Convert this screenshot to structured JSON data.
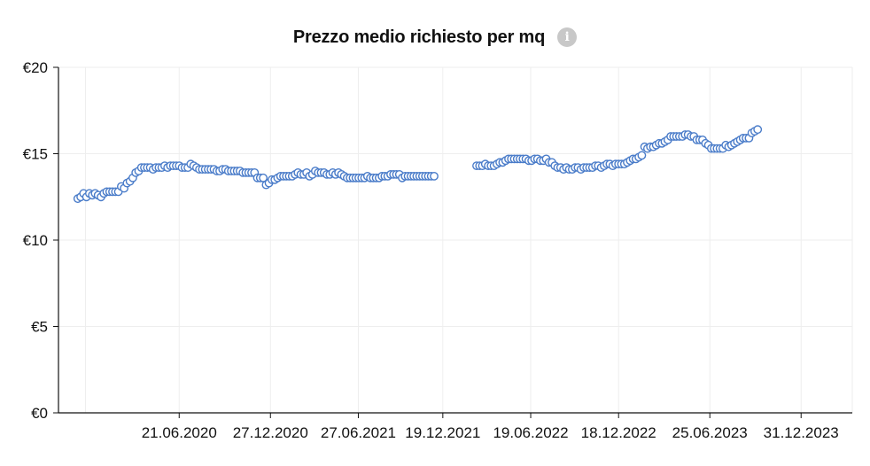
{
  "header": {
    "title": "Prezzo medio richiesto per mq",
    "info_icon": "info-icon"
  },
  "colors": {
    "marker_stroke": "#4a7cc9",
    "marker_fill": "#ffffff",
    "grid": "#eeeeee",
    "axis": "#111111"
  },
  "chart_data": {
    "type": "scatter",
    "title": "Prezzo medio richiesto per mq",
    "xlabel": "",
    "ylabel": "",
    "ylim": [
      0,
      20
    ],
    "y_ticks": [
      {
        "value": 0,
        "label": "€0"
      },
      {
        "value": 5,
        "label": "€5"
      },
      {
        "value": 10,
        "label": "€10"
      },
      {
        "value": 15,
        "label": "€15"
      },
      {
        "value": 20,
        "label": "€20"
      }
    ],
    "xlim": [
      "2019-10-15",
      "2024-04-15"
    ],
    "x_ticks": [
      {
        "date": "2020-06-21",
        "label": "21.06.2020"
      },
      {
        "date": "2020-12-27",
        "label": "27.12.2020"
      },
      {
        "date": "2021-06-27",
        "label": "27.06.2021"
      },
      {
        "date": "2021-12-19",
        "label": "19.12.2021"
      },
      {
        "date": "2022-06-19",
        "label": "19.06.2022"
      },
      {
        "date": "2022-12-18",
        "label": "18.12.2022"
      },
      {
        "date": "2023-06-25",
        "label": "25.06.2023"
      },
      {
        "date": "2023-12-31",
        "label": "31.12.2023"
      }
    ],
    "x_gridlines": [
      "2019-12-10",
      "2020-06-21",
      "2020-12-27",
      "2021-06-27",
      "2021-12-19",
      "2022-06-19",
      "2022-12-18",
      "2023-06-25",
      "2023-12-31",
      "2024-04-15"
    ],
    "grid": true,
    "legend": "none",
    "series": [
      {
        "points": [
          [
            "2019-11-24",
            12.4
          ],
          [
            "2019-11-30",
            12.5
          ],
          [
            "2019-12-06",
            12.7
          ],
          [
            "2019-12-12",
            12.5
          ],
          [
            "2019-12-18",
            12.7
          ],
          [
            "2019-12-24",
            12.6
          ],
          [
            "2019-12-30",
            12.7
          ],
          [
            "2020-01-05",
            12.6
          ],
          [
            "2020-01-11",
            12.5
          ],
          [
            "2020-01-17",
            12.7
          ],
          [
            "2020-01-23",
            12.8
          ],
          [
            "2020-01-29",
            12.8
          ],
          [
            "2020-02-04",
            12.8
          ],
          [
            "2020-02-10",
            12.8
          ],
          [
            "2020-02-16",
            12.8
          ],
          [
            "2020-02-22",
            13.1
          ],
          [
            "2020-02-28",
            13.0
          ],
          [
            "2020-03-05",
            13.3
          ],
          [
            "2020-03-11",
            13.4
          ],
          [
            "2020-03-17",
            13.6
          ],
          [
            "2020-03-23",
            13.9
          ],
          [
            "2020-03-29",
            14.0
          ],
          [
            "2020-04-04",
            14.2
          ],
          [
            "2020-04-10",
            14.2
          ],
          [
            "2020-04-16",
            14.2
          ],
          [
            "2020-04-22",
            14.2
          ],
          [
            "2020-04-28",
            14.1
          ],
          [
            "2020-05-04",
            14.2
          ],
          [
            "2020-05-10",
            14.2
          ],
          [
            "2020-05-16",
            14.2
          ],
          [
            "2020-05-22",
            14.3
          ],
          [
            "2020-05-28",
            14.2
          ],
          [
            "2020-06-03",
            14.3
          ],
          [
            "2020-06-09",
            14.3
          ],
          [
            "2020-06-15",
            14.3
          ],
          [
            "2020-06-21",
            14.3
          ],
          [
            "2020-06-27",
            14.2
          ],
          [
            "2020-07-03",
            14.2
          ],
          [
            "2020-07-09",
            14.2
          ],
          [
            "2020-07-15",
            14.4
          ],
          [
            "2020-07-21",
            14.3
          ],
          [
            "2020-07-27",
            14.2
          ],
          [
            "2020-08-02",
            14.1
          ],
          [
            "2020-08-08",
            14.1
          ],
          [
            "2020-08-14",
            14.1
          ],
          [
            "2020-08-20",
            14.1
          ],
          [
            "2020-08-26",
            14.1
          ],
          [
            "2020-09-01",
            14.1
          ],
          [
            "2020-09-07",
            14.0
          ],
          [
            "2020-09-13",
            14.0
          ],
          [
            "2020-09-19",
            14.1
          ],
          [
            "2020-09-25",
            14.1
          ],
          [
            "2020-10-01",
            14.0
          ],
          [
            "2020-10-07",
            14.0
          ],
          [
            "2020-10-13",
            14.0
          ],
          [
            "2020-10-19",
            14.0
          ],
          [
            "2020-10-25",
            14.0
          ],
          [
            "2020-10-31",
            13.9
          ],
          [
            "2020-11-06",
            13.9
          ],
          [
            "2020-11-12",
            13.9
          ],
          [
            "2020-11-18",
            13.9
          ],
          [
            "2020-11-24",
            13.9
          ],
          [
            "2020-11-30",
            13.6
          ],
          [
            "2020-12-06",
            13.6
          ],
          [
            "2020-12-12",
            13.6
          ],
          [
            "2020-12-18",
            13.2
          ],
          [
            "2020-12-24",
            13.3
          ],
          [
            "2020-12-30",
            13.5
          ],
          [
            "2021-01-05",
            13.5
          ],
          [
            "2021-01-11",
            13.6
          ],
          [
            "2021-01-17",
            13.7
          ],
          [
            "2021-01-23",
            13.7
          ],
          [
            "2021-01-29",
            13.7
          ],
          [
            "2021-02-04",
            13.7
          ],
          [
            "2021-02-10",
            13.7
          ],
          [
            "2021-02-16",
            13.8
          ],
          [
            "2021-02-22",
            13.9
          ],
          [
            "2021-02-28",
            13.8
          ],
          [
            "2021-03-06",
            13.8
          ],
          [
            "2021-03-12",
            13.9
          ],
          [
            "2021-03-18",
            13.7
          ],
          [
            "2021-03-24",
            13.8
          ],
          [
            "2021-03-30",
            14.0
          ],
          [
            "2021-04-05",
            13.9
          ],
          [
            "2021-04-11",
            13.9
          ],
          [
            "2021-04-17",
            13.9
          ],
          [
            "2021-04-23",
            13.8
          ],
          [
            "2021-04-29",
            13.8
          ],
          [
            "2021-05-05",
            13.9
          ],
          [
            "2021-05-11",
            13.8
          ],
          [
            "2021-05-17",
            13.9
          ],
          [
            "2021-05-23",
            13.8
          ],
          [
            "2021-05-29",
            13.7
          ],
          [
            "2021-06-04",
            13.6
          ],
          [
            "2021-06-10",
            13.6
          ],
          [
            "2021-06-16",
            13.6
          ],
          [
            "2021-06-22",
            13.6
          ],
          [
            "2021-06-28",
            13.6
          ],
          [
            "2021-07-04",
            13.6
          ],
          [
            "2021-07-10",
            13.6
          ],
          [
            "2021-07-16",
            13.7
          ],
          [
            "2021-07-22",
            13.6
          ],
          [
            "2021-07-28",
            13.6
          ],
          [
            "2021-08-03",
            13.6
          ],
          [
            "2021-08-09",
            13.6
          ],
          [
            "2021-08-15",
            13.7
          ],
          [
            "2021-08-21",
            13.7
          ],
          [
            "2021-08-27",
            13.7
          ],
          [
            "2021-09-02",
            13.8
          ],
          [
            "2021-09-08",
            13.8
          ],
          [
            "2021-09-14",
            13.8
          ],
          [
            "2021-09-20",
            13.8
          ],
          [
            "2021-09-26",
            13.6
          ],
          [
            "2021-10-02",
            13.7
          ],
          [
            "2021-10-08",
            13.7
          ],
          [
            "2021-10-14",
            13.7
          ],
          [
            "2021-10-20",
            13.7
          ],
          [
            "2021-10-26",
            13.7
          ],
          [
            "2021-11-01",
            13.7
          ],
          [
            "2021-11-07",
            13.7
          ],
          [
            "2021-11-13",
            13.7
          ],
          [
            "2021-11-19",
            13.7
          ],
          [
            "2021-11-25",
            13.7
          ],
          [
            "2021-12-01",
            13.7
          ],
          [
            "2022-02-27",
            14.3
          ],
          [
            "2022-03-05",
            14.3
          ],
          [
            "2022-03-11",
            14.3
          ],
          [
            "2022-03-17",
            14.4
          ],
          [
            "2022-03-23",
            14.3
          ],
          [
            "2022-03-29",
            14.3
          ],
          [
            "2022-04-04",
            14.3
          ],
          [
            "2022-04-10",
            14.4
          ],
          [
            "2022-04-16",
            14.5
          ],
          [
            "2022-04-22",
            14.5
          ],
          [
            "2022-04-28",
            14.6
          ],
          [
            "2022-05-04",
            14.7
          ],
          [
            "2022-05-10",
            14.7
          ],
          [
            "2022-05-16",
            14.7
          ],
          [
            "2022-05-22",
            14.7
          ],
          [
            "2022-05-28",
            14.7
          ],
          [
            "2022-06-03",
            14.7
          ],
          [
            "2022-06-09",
            14.7
          ],
          [
            "2022-06-15",
            14.6
          ],
          [
            "2022-06-21",
            14.6
          ],
          [
            "2022-06-27",
            14.7
          ],
          [
            "2022-07-03",
            14.7
          ],
          [
            "2022-07-09",
            14.6
          ],
          [
            "2022-07-15",
            14.6
          ],
          [
            "2022-07-21",
            14.7
          ],
          [
            "2022-07-27",
            14.5
          ],
          [
            "2022-08-02",
            14.5
          ],
          [
            "2022-08-08",
            14.3
          ],
          [
            "2022-08-14",
            14.2
          ],
          [
            "2022-08-20",
            14.2
          ],
          [
            "2022-08-26",
            14.1
          ],
          [
            "2022-09-01",
            14.2
          ],
          [
            "2022-09-07",
            14.1
          ],
          [
            "2022-09-13",
            14.1
          ],
          [
            "2022-09-19",
            14.2
          ],
          [
            "2022-09-25",
            14.2
          ],
          [
            "2022-10-01",
            14.1
          ],
          [
            "2022-10-07",
            14.2
          ],
          [
            "2022-10-13",
            14.2
          ],
          [
            "2022-10-19",
            14.2
          ],
          [
            "2022-10-25",
            14.2
          ],
          [
            "2022-10-31",
            14.3
          ],
          [
            "2022-11-06",
            14.3
          ],
          [
            "2022-11-12",
            14.2
          ],
          [
            "2022-11-18",
            14.3
          ],
          [
            "2022-11-24",
            14.4
          ],
          [
            "2022-11-30",
            14.4
          ],
          [
            "2022-12-06",
            14.3
          ],
          [
            "2022-12-12",
            14.4
          ],
          [
            "2022-12-18",
            14.4
          ],
          [
            "2022-12-24",
            14.4
          ],
          [
            "2022-12-30",
            14.4
          ],
          [
            "2023-01-05",
            14.5
          ],
          [
            "2023-01-11",
            14.6
          ],
          [
            "2023-01-17",
            14.7
          ],
          [
            "2023-01-23",
            14.7
          ],
          [
            "2023-01-29",
            14.8
          ],
          [
            "2023-02-04",
            14.9
          ],
          [
            "2023-02-10",
            15.4
          ],
          [
            "2023-02-16",
            15.3
          ],
          [
            "2023-02-22",
            15.4
          ],
          [
            "2023-02-28",
            15.4
          ],
          [
            "2023-03-06",
            15.5
          ],
          [
            "2023-03-12",
            15.6
          ],
          [
            "2023-03-18",
            15.6
          ],
          [
            "2023-03-24",
            15.7
          ],
          [
            "2023-03-30",
            15.8
          ],
          [
            "2023-04-05",
            16.0
          ],
          [
            "2023-04-11",
            16.0
          ],
          [
            "2023-04-17",
            16.0
          ],
          [
            "2023-04-23",
            16.0
          ],
          [
            "2023-04-29",
            16.0
          ],
          [
            "2023-05-05",
            16.1
          ],
          [
            "2023-05-11",
            16.1
          ],
          [
            "2023-05-17",
            16.0
          ],
          [
            "2023-05-23",
            16.0
          ],
          [
            "2023-05-29",
            15.8
          ],
          [
            "2023-06-04",
            15.8
          ],
          [
            "2023-06-10",
            15.8
          ],
          [
            "2023-06-16",
            15.6
          ],
          [
            "2023-06-22",
            15.5
          ],
          [
            "2023-06-28",
            15.3
          ],
          [
            "2023-07-04",
            15.3
          ],
          [
            "2023-07-10",
            15.3
          ],
          [
            "2023-07-16",
            15.3
          ],
          [
            "2023-07-22",
            15.3
          ],
          [
            "2023-07-28",
            15.5
          ],
          [
            "2023-08-03",
            15.4
          ],
          [
            "2023-08-09",
            15.5
          ],
          [
            "2023-08-15",
            15.6
          ],
          [
            "2023-08-21",
            15.7
          ],
          [
            "2023-08-27",
            15.8
          ],
          [
            "2023-09-02",
            15.9
          ],
          [
            "2023-09-08",
            15.9
          ],
          [
            "2023-09-14",
            15.9
          ],
          [
            "2023-09-20",
            16.2
          ],
          [
            "2023-09-26",
            16.3
          ],
          [
            "2023-10-02",
            16.4
          ]
        ]
      }
    ]
  }
}
